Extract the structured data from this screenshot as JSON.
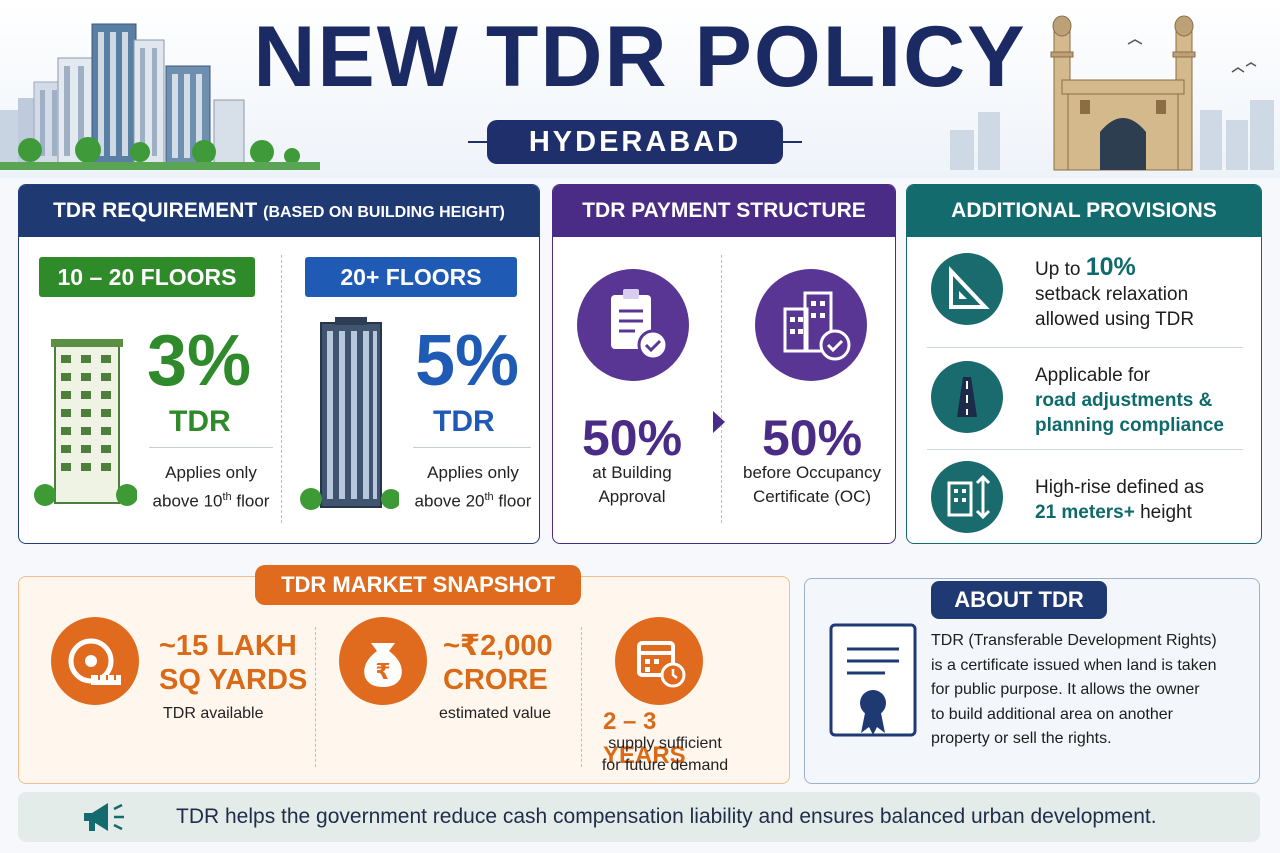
{
  "header": {
    "title": "NEW TDR POLICY",
    "subtitle": "HYDERABAD"
  },
  "requirement": {
    "title": "TDR REQUIREMENT",
    "title_small": "(BASED ON BUILDING HEIGHT)",
    "left": {
      "tag": "10 – 20 FLOORS",
      "percent": "3%",
      "unit": "TDR",
      "note_line1": "Applies only",
      "note_pre": "above 10",
      "note_sup": "th",
      "note_post": " floor"
    },
    "right": {
      "tag": "20+ FLOORS",
      "percent": "5%",
      "unit": "TDR",
      "note_line1": "Applies only",
      "note_pre": "above 20",
      "note_sup": "th",
      "note_post": " floor"
    }
  },
  "payment": {
    "title": "TDR PAYMENT STRUCTURE",
    "first": {
      "percent": "50%",
      "line1": "at Building",
      "line2": "Approval"
    },
    "second": {
      "percent": "50%",
      "line1": "before Occupancy",
      "line2": "Certificate (OC)"
    }
  },
  "provisions": {
    "title": "ADDITIONAL PROVISIONS",
    "item1": {
      "pre": "Up to ",
      "highlight": "10%",
      "line2": "setback relaxation",
      "line3": "allowed using TDR"
    },
    "item2": {
      "line1": "Applicable for",
      "line2": "road adjustments &",
      "line3": "planning compliance"
    },
    "item3": {
      "line1": "High-rise defined as",
      "highlight": "21 meters+",
      "post": " height"
    }
  },
  "market": {
    "title": "TDR MARKET SNAPSHOT",
    "stat1": {
      "line1": "~15 LAKH",
      "line2": "SQ YARDS",
      "note": "TDR available"
    },
    "stat2": {
      "line1": "~₹2,000",
      "line2": "CRORE",
      "note": "estimated value"
    },
    "stat3": {
      "value": "2 – 3 YEARS",
      "line1": "supply sufficient",
      "line2": "for future demand"
    }
  },
  "about": {
    "title": "ABOUT TDR",
    "lines": [
      "TDR (Transferable Development Rights)",
      "is a certificate issued when land is taken",
      "for public purpose. It allows the owner",
      "to build additional area on another",
      "property or sell the rights."
    ]
  },
  "footer": {
    "text": "TDR helps the government reduce cash compensation liability and ensures balanced urban development."
  },
  "colors": {
    "navy": "#1c2a63",
    "green": "#2e8a2b",
    "blue": "#1f5bb5",
    "purple": "#4a2c86",
    "teal": "#136b6e",
    "orange": "#e06b1f"
  }
}
